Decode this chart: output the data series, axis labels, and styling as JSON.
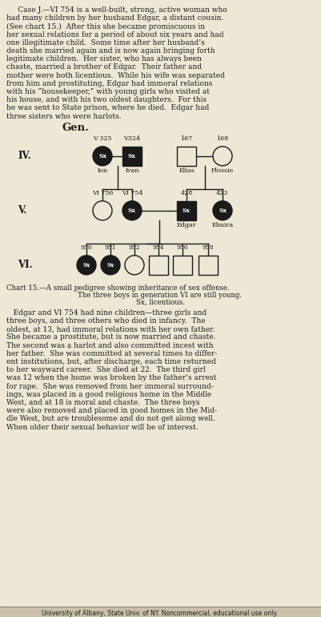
{
  "bg_color": "#ede8d5",
  "text_color": "#1a1a1a",
  "dark_fill": "#1a1a1a",
  "light_fill": "#ede8d5",
  "para1_lines": [
    "     Case J.—VI 754 is a well-built, strong, active woman who",
    "had many children by her husband Edgar, a distant cousin.",
    "(See chart 15.)  After this she became promiscuous in",
    "her sexual relations for a period of about six years and had",
    "one illegitimate child.  Some time after her husband’s",
    "death she married again and is now again bringing forth",
    "legitimate children.  Her sister, who has always been",
    "chaste, married a brother of Edgar.  Their father and",
    "mother were both licentious.  While his wife was separated",
    "from him and prostituting, Edgar had immoral relations",
    "with his “housekeeper,” with young girls who visited at",
    "his house, and with his two oldest daughters.  For this",
    "he was sent to State prison, where he died.  Edgar had",
    "three sisters who were harlots."
  ],
  "gen_label": "Gen.",
  "gen_iv_label": "IV.",
  "gen_v_label": "V.",
  "gen_vi_label": "VI.",
  "chart_caption1": "Chart 15.—A small pedigree showing inheritance of sex offense.",
  "chart_caption2": "The three boys in generation VI are still young.",
  "chart_caption3": "Sx, licentious.",
  "para2_lines": [
    "   Edgar and VI 754 had nine children—three girls and",
    "three boys, and three others who died in infancy.  The",
    "oldest, at 13, had immoral relations with her own father.",
    "She became a prostitute, but is now married and chaste.",
    "The second was a harlot and also committed incest with",
    "her father.  She was committed at several times to differ-",
    "ent institutions, but, after discharge, each time returned",
    "to her wayward career.  She died at 22.  The third girl",
    "was 12 when the home was broken by the father’s arrest",
    "for rape.  She was removed from her immoral surround-",
    "ings, was placed in a good religious home in the Middle",
    "West, and at 18 is moral and chaste.  The three boys",
    "were also removed and placed in good homes in the Mid-",
    "dle West, but are troublesome and do not get along well.",
    "When older their sexual behavior will be of interest."
  ],
  "footer": "University of Albany, State Univ. of NY. Noncommercial, educational use only.",
  "iv_labels_above": [
    "V 325",
    "V324",
    "167",
    "168"
  ],
  "iv_labels_below": [
    "Ion",
    "Ivan",
    "Elias",
    "Flossie"
  ],
  "iv_types": [
    "circle_filled",
    "square_filled",
    "square_empty",
    "circle_empty"
  ],
  "v_labels_above": [
    "VI 756",
    "VI 754",
    "428",
    "423"
  ],
  "v_labels_below": [
    "",
    "",
    "Edgar",
    "Elmira"
  ],
  "v_types": [
    "circle_empty",
    "circle_filled",
    "square_filled",
    "circle_filled"
  ],
  "vi_labels_above": [
    "950",
    "951",
    "952",
    "954",
    "956",
    "958"
  ],
  "vi_types": [
    "circle_filled",
    "circle_filled",
    "circle_empty",
    "square_empty",
    "square_empty",
    "square_empty"
  ]
}
